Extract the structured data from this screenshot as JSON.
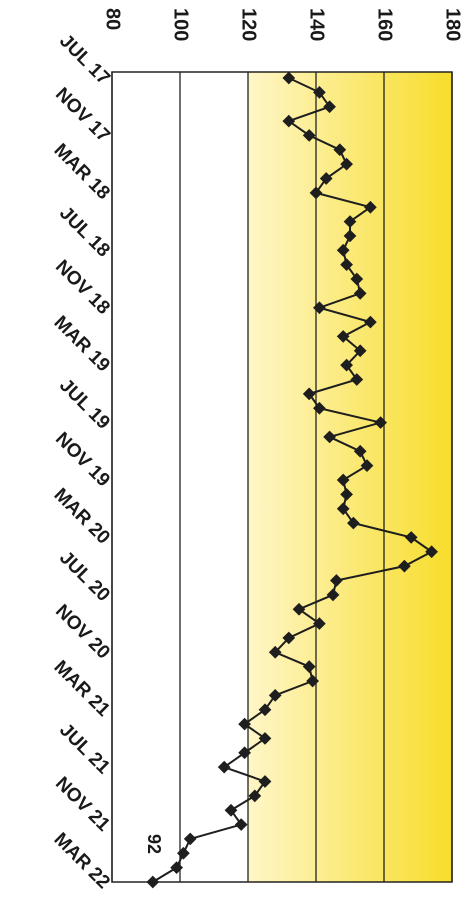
{
  "chart_data": {
    "type": "line",
    "orientation": "vertical",
    "categories": [
      "JUL 17",
      null,
      null,
      null,
      "NOV 17",
      null,
      null,
      null,
      "MAR 18",
      null,
      null,
      null,
      "JUL 18",
      null,
      null,
      null,
      "NOV 18",
      null,
      null,
      null,
      "MAR 19",
      null,
      null,
      null,
      "JUL 19",
      null,
      null,
      null,
      "NOV 19",
      null,
      null,
      null,
      "MAR 20",
      null,
      null,
      null,
      "JUL 20",
      null,
      null,
      null,
      "NOV 20",
      null,
      null,
      null,
      "MAR 21",
      null,
      null,
      null,
      "JUL 21",
      null,
      null,
      null,
      "NOV 21",
      null,
      null,
      null,
      "MAR 22"
    ],
    "series": [
      {
        "color": "#1e1e1e",
        "values": [
          132,
          141,
          144,
          132,
          138,
          147,
          149,
          143,
          140,
          156,
          150,
          150,
          148,
          149,
          152,
          153,
          141,
          156,
          148,
          153,
          149,
          152,
          138,
          141,
          159,
          144,
          153,
          155,
          148,
          149,
          148,
          151,
          168,
          174,
          166,
          146,
          145,
          135,
          141,
          132,
          128,
          138,
          139,
          128,
          125,
          119,
          125,
          119,
          113,
          125,
          122,
          115,
          118,
          103,
          101,
          99,
          92
        ]
      }
    ],
    "ylim": [
      80,
      180
    ],
    "yticks": [
      80,
      100,
      120,
      140,
      160,
      180
    ],
    "grid": true,
    "shaded_range": [
      120,
      180
    ],
    "shade_colors": [
      "#fff6c8",
      "#f7dd2a"
    ],
    "label_last_value": true
  }
}
